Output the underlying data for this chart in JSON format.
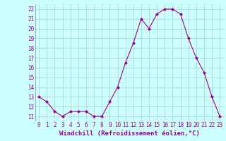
{
  "x": [
    0,
    1,
    2,
    3,
    4,
    5,
    6,
    7,
    8,
    9,
    10,
    11,
    12,
    13,
    14,
    15,
    16,
    17,
    18,
    19,
    20,
    21,
    22,
    23
  ],
  "y": [
    13,
    12.5,
    11.5,
    11,
    11.5,
    11.5,
    11.5,
    11,
    11,
    12.5,
    14,
    16.5,
    18.5,
    21,
    20,
    21.5,
    22,
    22,
    21.5,
    19,
    17,
    15.5,
    13,
    11
  ],
  "line_color": "#990099",
  "marker": "D",
  "marker_size": 2,
  "bg_color": "#ccffff",
  "grid_color": "#aacccc",
  "xlabel": "Windchill (Refroidissement éolien,°C)",
  "xlabel_color": "#990099",
  "tick_color": "#990099",
  "ylim": [
    10.5,
    22.5
  ],
  "yticks": [
    11,
    12,
    13,
    14,
    15,
    16,
    17,
    18,
    19,
    20,
    21,
    22
  ],
  "xlim": [
    -0.5,
    23.5
  ],
  "xticks": [
    0,
    1,
    2,
    3,
    4,
    5,
    6,
    7,
    8,
    9,
    10,
    11,
    12,
    13,
    14,
    15,
    16,
    17,
    18,
    19,
    20,
    21,
    22,
    23
  ],
  "tick_fontsize": 5.5,
  "xlabel_fontsize": 6.5
}
